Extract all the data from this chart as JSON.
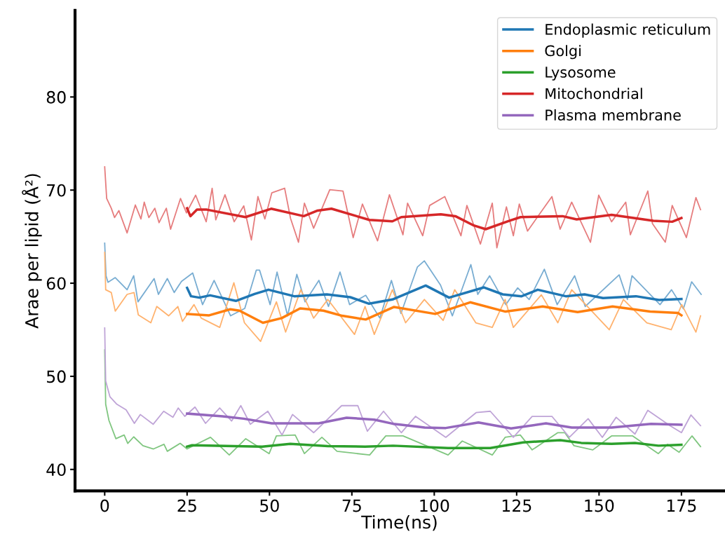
{
  "chart_data": {
    "type": "line",
    "xlabel": "Time(ns)",
    "ylabel": "Arae per lipid (Å²)",
    "xlim": [
      -9,
      188
    ],
    "ylim": [
      37.7,
      89.3
    ],
    "xticks": [
      0,
      25,
      50,
      75,
      100,
      125,
      150,
      175
    ],
    "yticks": [
      40,
      50,
      60,
      70,
      80
    ],
    "grid": false,
    "legend": "top right",
    "series": [
      {
        "color": "#79add2",
        "x": [
          0,
          0.4,
          1,
          3.2,
          6.8,
          8.8,
          10.1,
          15,
          16.3,
          19,
          21.1,
          23.3,
          26.7,
          29.7,
          33.2,
          38.2,
          42.5,
          46,
          47,
          50.2,
          52.3,
          55.5,
          58.3,
          60.8,
          65,
          67.9,
          71.4,
          74.3,
          79.2,
          83.5,
          87,
          89.9,
          94.9,
          97,
          101.9,
          105.5,
          111.1,
          113.2,
          116.8,
          121.7,
          125.3,
          128.8,
          133.4,
          137.3,
          142.6,
          145.8,
          156.1,
          158.6,
          160,
          168.5,
          172,
          175.6,
          178.1,
          181
        ],
        "values": [
          64.3,
          60.8,
          60.1,
          60.6,
          59.3,
          60.8,
          58.0,
          60.5,
          58.8,
          60.5,
          59.0,
          60.2,
          61.1,
          57.7,
          60.3,
          56.5,
          57.3,
          61.4,
          61.4,
          57.7,
          61.2,
          56.5,
          60.95,
          58.0,
          60.3,
          57.5,
          61.2,
          57.7,
          58.7,
          56.25,
          60.3,
          56.75,
          61.75,
          62.4,
          59.8,
          56.5,
          62.0,
          58.8,
          60.8,
          57.7,
          59.5,
          58.25,
          61.5,
          57.7,
          60.8,
          57.5,
          60.9,
          58.25,
          60.8,
          57.7,
          59.3,
          57.25,
          60.15,
          58.8
        ]
      },
      {
        "color": "#ffb26e",
        "x": [
          0,
          0.3,
          2,
          3.2,
          6.8,
          8.9,
          10.2,
          14,
          15.8,
          19.4,
          22.2,
          23.6,
          27.1,
          29.3,
          34.9,
          39.2,
          42.4,
          47.3,
          52.1,
          54.9,
          59.5,
          63.4,
          67.7,
          75.8,
          79,
          81.8,
          87.3,
          91.3,
          97,
          102.7,
          106.2,
          112.6,
          117.6,
          121.5,
          124,
          132.5,
          137.5,
          141.7,
          153.1,
          157.4,
          164.5,
          171.9,
          175.1,
          179.4,
          180.8
        ],
        "values": [
          63.3,
          59.3,
          59.0,
          57.0,
          58.8,
          59.0,
          56.6,
          55.75,
          57.5,
          56.5,
          57.5,
          55.9,
          57.7,
          56.25,
          55.25,
          60.05,
          55.75,
          53.75,
          58.0,
          54.75,
          59.3,
          56.25,
          58.25,
          54.5,
          57.5,
          54.5,
          59.3,
          55.75,
          58.25,
          56.0,
          59.3,
          55.75,
          55.25,
          58.25,
          55.25,
          58.75,
          55.75,
          59.3,
          55.0,
          58.25,
          55.75,
          55.0,
          57.7,
          54.75,
          56.5
        ]
      },
      {
        "color": "#80c680",
        "x": [
          0,
          0.3,
          1.3,
          3.4,
          5.9,
          7,
          8.8,
          11.6,
          14.8,
          18,
          19,
          22.9,
          25,
          32.1,
          37.8,
          42.8,
          49.9,
          52.1,
          57.8,
          60.6,
          65.9,
          70.5,
          80.4,
          85.3,
          90.5,
          104.2,
          108.5,
          117.6,
          121.5,
          126.1,
          129.7,
          137.5,
          139.6,
          142.4,
          148.1,
          153.8,
          160.2,
          168,
          170.8,
          174.3,
          178.2,
          180.8
        ],
        "values": [
          52.85,
          47.0,
          45.25,
          43.3,
          43.7,
          42.8,
          43.5,
          42.55,
          42.2,
          42.7,
          41.95,
          42.8,
          42.2,
          43.45,
          41.55,
          43.3,
          41.7,
          43.6,
          43.7,
          41.7,
          43.45,
          41.95,
          41.55,
          43.6,
          43.6,
          41.55,
          43.05,
          41.55,
          43.45,
          43.7,
          42.1,
          43.95,
          43.95,
          42.55,
          42.1,
          43.6,
          43.6,
          41.7,
          42.7,
          41.85,
          43.6,
          42.45
        ]
      },
      {
        "color": "#e67d7e",
        "x": [
          0,
          0.6,
          2,
          3,
          4.3,
          6.8,
          9.3,
          11,
          12,
          13.4,
          15.2,
          16.5,
          18.7,
          20,
          23,
          24.8,
          27.6,
          30.8,
          32.6,
          33.7,
          36.5,
          39.3,
          42.2,
          44.5,
          46.5,
          48.6,
          50.7,
          54.6,
          56.4,
          58.8,
          60.6,
          63.4,
          68.3,
          72.3,
          75.4,
          78.2,
          82.8,
          86.4,
          90.5,
          91.9,
          96.5,
          98.6,
          103.2,
          108.1,
          109.9,
          114,
          117.6,
          119,
          121.9,
          124,
          125.8,
          128.3,
          135.7,
          138.2,
          141.7,
          147.4,
          149.9,
          153.8,
          158.1,
          159.5,
          164.8,
          166.2,
          170.1,
          172.2,
          176.5,
          179.4,
          180.8
        ],
        "values": [
          72.5,
          69.1,
          68.05,
          67.05,
          67.8,
          65.4,
          68.4,
          66.9,
          68.7,
          67.05,
          68.05,
          66.5,
          68.05,
          65.8,
          69.1,
          67.55,
          69.45,
          66.6,
          70.2,
          66.8,
          69.5,
          66.6,
          68.3,
          64.65,
          69.3,
          66.9,
          69.7,
          70.2,
          66.95,
          64.4,
          68.6,
          65.9,
          70.05,
          69.9,
          64.9,
          68.5,
          64.55,
          69.5,
          65.2,
          68.6,
          65.1,
          68.35,
          69.3,
          65.1,
          68.35,
          64.2,
          68.6,
          63.8,
          68.2,
          65.1,
          68.5,
          65.6,
          69.3,
          65.8,
          68.7,
          64.4,
          69.45,
          66.6,
          68.7,
          65.2,
          69.9,
          66.4,
          64.4,
          68.35,
          64.9,
          69.2,
          67.9
        ]
      },
      {
        "color": "#bfa4d7",
        "x": [
          0,
          0.3,
          1.6,
          3.7,
          6.5,
          9,
          10.8,
          14.7,
          17.9,
          20.7,
          22.3,
          24.3,
          27.4,
          30.6,
          34.9,
          38.5,
          41.3,
          44.2,
          49.5,
          53.8,
          57,
          63.4,
          71.9,
          76.8,
          79.7,
          84.6,
          90,
          94.3,
          103.5,
          112.7,
          117,
          124,
          129.7,
          135.7,
          141,
          146.7,
          151,
          155.2,
          160.9,
          164.8,
          171.5,
          175,
          177.9,
          180.8
        ],
        "values": [
          55.2,
          49.5,
          47.8,
          47.0,
          46.4,
          44.95,
          45.9,
          44.85,
          46.25,
          45.6,
          46.6,
          45.7,
          46.7,
          44.95,
          46.6,
          45.2,
          46.85,
          44.85,
          46.25,
          43.7,
          45.9,
          43.95,
          46.85,
          46.85,
          44.1,
          46.25,
          43.95,
          45.7,
          43.45,
          46.1,
          46.25,
          43.45,
          45.7,
          45.7,
          43.45,
          45.45,
          43.45,
          45.6,
          43.8,
          46.35,
          44.7,
          43.95,
          45.85,
          44.7
        ]
      },
      {
        "name": "Endoplasmic reticulum",
        "color": "#1f77b4",
        "x": [
          25,
          26.2,
          28.7,
          32,
          39.8,
          45.5,
          49.7,
          57.5,
          67.4,
          74.5,
          80.2,
          87.3,
          97.4,
          104.5,
          115.1,
          120.8,
          126.5,
          131.4,
          139.9,
          145.6,
          151.2,
          161.2,
          168.2,
          175
        ],
        "values": [
          59.5,
          58.6,
          58.45,
          58.7,
          58.1,
          58.85,
          59.3,
          58.6,
          58.8,
          58.5,
          57.8,
          58.25,
          59.75,
          58.45,
          59.55,
          58.8,
          58.6,
          59.3,
          58.6,
          58.8,
          58.4,
          58.6,
          58.2,
          58.3
        ]
      },
      {
        "name": "Golgi",
        "color": "#ff7f0e",
        "x": [
          25,
          31.7,
          38.1,
          40.9,
          48,
          53.7,
          59.3,
          66.4,
          72.1,
          79.2,
          87.8,
          100.3,
          110.9,
          121.6,
          132.9,
          143.5,
          154.1,
          165.5,
          174,
          175
        ],
        "values": [
          56.7,
          56.55,
          57.2,
          57.05,
          55.75,
          56.25,
          57.3,
          57.05,
          56.5,
          56.1,
          57.45,
          56.7,
          57.95,
          56.95,
          57.5,
          56.9,
          57.5,
          56.95,
          56.8,
          56.55
        ]
      },
      {
        "name": "Lysosome",
        "color": "#2ca02c",
        "x": [
          25,
          26.5,
          39.3,
          47.8,
          56.3,
          67.7,
          79,
          87.5,
          104.2,
          117,
          126.9,
          138.2,
          144.6,
          153.8,
          160.9,
          168,
          175
        ],
        "values": [
          42.45,
          42.6,
          42.5,
          42.45,
          42.75,
          42.5,
          42.45,
          42.55,
          42.3,
          42.3,
          42.9,
          43.15,
          42.85,
          42.75,
          42.85,
          42.55,
          42.65
        ]
      },
      {
        "name": "Mitochondrial",
        "color": "#d62728",
        "x": [
          25,
          26,
          28,
          31,
          42.7,
          50.5,
          60.4,
          64.6,
          68.8,
          80.3,
          87.3,
          90,
          102,
          106.4,
          112,
          115.6,
          122.7,
          126.2,
          138.9,
          143.2,
          153.8,
          166.5,
          172.2,
          175
        ],
        "values": [
          68.05,
          67.2,
          67.9,
          67.9,
          67.1,
          68.0,
          67.2,
          67.8,
          68.0,
          66.8,
          66.65,
          67.1,
          67.4,
          67.2,
          66.2,
          65.8,
          66.7,
          67.1,
          67.2,
          66.85,
          67.35,
          66.7,
          66.6,
          67.0
        ]
      },
      {
        "name": "Plasma membrane",
        "color": "#9467bd",
        "x": [
          25,
          35.8,
          42.2,
          50.7,
          58.5,
          64.9,
          73.4,
          81.8,
          87.5,
          90,
          97.1,
          103.5,
          113.4,
          123.3,
          133.9,
          141.7,
          153.8,
          165.8,
          175
        ],
        "values": [
          46.0,
          45.7,
          45.45,
          44.95,
          44.95,
          44.95,
          45.55,
          45.35,
          44.9,
          44.8,
          44.5,
          44.45,
          45.05,
          44.4,
          44.95,
          44.5,
          44.5,
          44.9,
          44.8
        ]
      }
    ]
  }
}
